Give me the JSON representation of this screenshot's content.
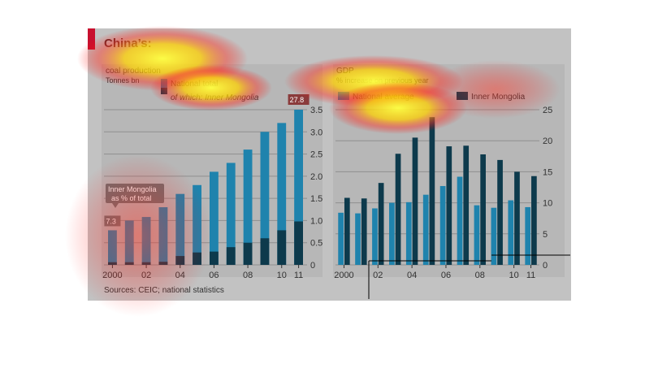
{
  "figure": {
    "title": "China’s:",
    "source": "Sources: CEIC; national statistics",
    "colors": {
      "background": "#c2c2c2",
      "panel": "#b7b7b7",
      "accent_red": "#c8102e",
      "series_light": "#1f83ad",
      "series_dark": "#0d3a4c",
      "grid": "#8f8f8f",
      "tag": "#6f6f6f"
    }
  },
  "chart_data": [
    {
      "type": "bar",
      "title": "coal production",
      "subtitle": "Tonnes bn",
      "x": [
        2000,
        2001,
        2002,
        2003,
        2004,
        2005,
        2006,
        2007,
        2008,
        2009,
        2010,
        2011
      ],
      "xtick_labels": [
        "2000",
        "02",
        "04",
        "06",
        "08",
        "10",
        "11"
      ],
      "xtick_values": [
        2000,
        2002,
        2004,
        2006,
        2008,
        2010,
        2011
      ],
      "ylim": [
        0,
        3.5
      ],
      "yticks": [
        0,
        0.5,
        1.0,
        1.5,
        2.0,
        2.5,
        3.0,
        3.5
      ],
      "ytick_labels": [
        "0",
        "0.5",
        "1.0",
        "1.5",
        "2.0",
        "2.5",
        "3.0",
        "3.5"
      ],
      "grid": true,
      "axis_side": "right",
      "legend_placement": "top-center",
      "series": [
        {
          "name": "National total",
          "values": [
            0.78,
            1.0,
            1.08,
            1.3,
            1.6,
            1.8,
            2.1,
            2.3,
            2.6,
            3.0,
            3.2,
            3.5
          ]
        },
        {
          "name": "of which: Inner Mongolia",
          "values": [
            0.06,
            0.06,
            0.06,
            0.07,
            0.2,
            0.28,
            0.3,
            0.4,
            0.5,
            0.6,
            0.78,
            0.98
          ]
        }
      ],
      "annotations": {
        "box_title": "Inner Mongolia as % of total",
        "box_lines": [
          "Inner Mongolia",
          "as % of total"
        ],
        "start_label": "7.3",
        "end_label": "27.8"
      }
    },
    {
      "type": "bar",
      "title": "GDP",
      "subtitle": "% increase on previous year",
      "x": [
        2000,
        2001,
        2002,
        2003,
        2004,
        2005,
        2006,
        2007,
        2008,
        2009,
        2010,
        2011
      ],
      "xtick_labels": [
        "2000",
        "02",
        "04",
        "06",
        "08",
        "10",
        "11"
      ],
      "xtick_values": [
        2000,
        2002,
        2004,
        2006,
        2008,
        2010,
        2011
      ],
      "ylim": [
        0,
        25
      ],
      "yticks": [
        0,
        5,
        10,
        15,
        20,
        25
      ],
      "ytick_labels": [
        "0",
        "5",
        "10",
        "15",
        "20",
        "25"
      ],
      "grid": true,
      "axis_side": "right",
      "legend_placement": "top",
      "series": [
        {
          "name": "National average",
          "values": [
            8.4,
            8.3,
            9.1,
            10.0,
            10.1,
            11.3,
            12.7,
            14.2,
            9.6,
            9.2,
            10.4,
            9.3
          ]
        },
        {
          "name": "Inner Mongolia",
          "values": [
            10.8,
            10.7,
            13.2,
            17.9,
            20.5,
            23.8,
            19.1,
            19.2,
            17.8,
            16.9,
            15.0,
            14.3
          ]
        }
      ]
    }
  ]
}
